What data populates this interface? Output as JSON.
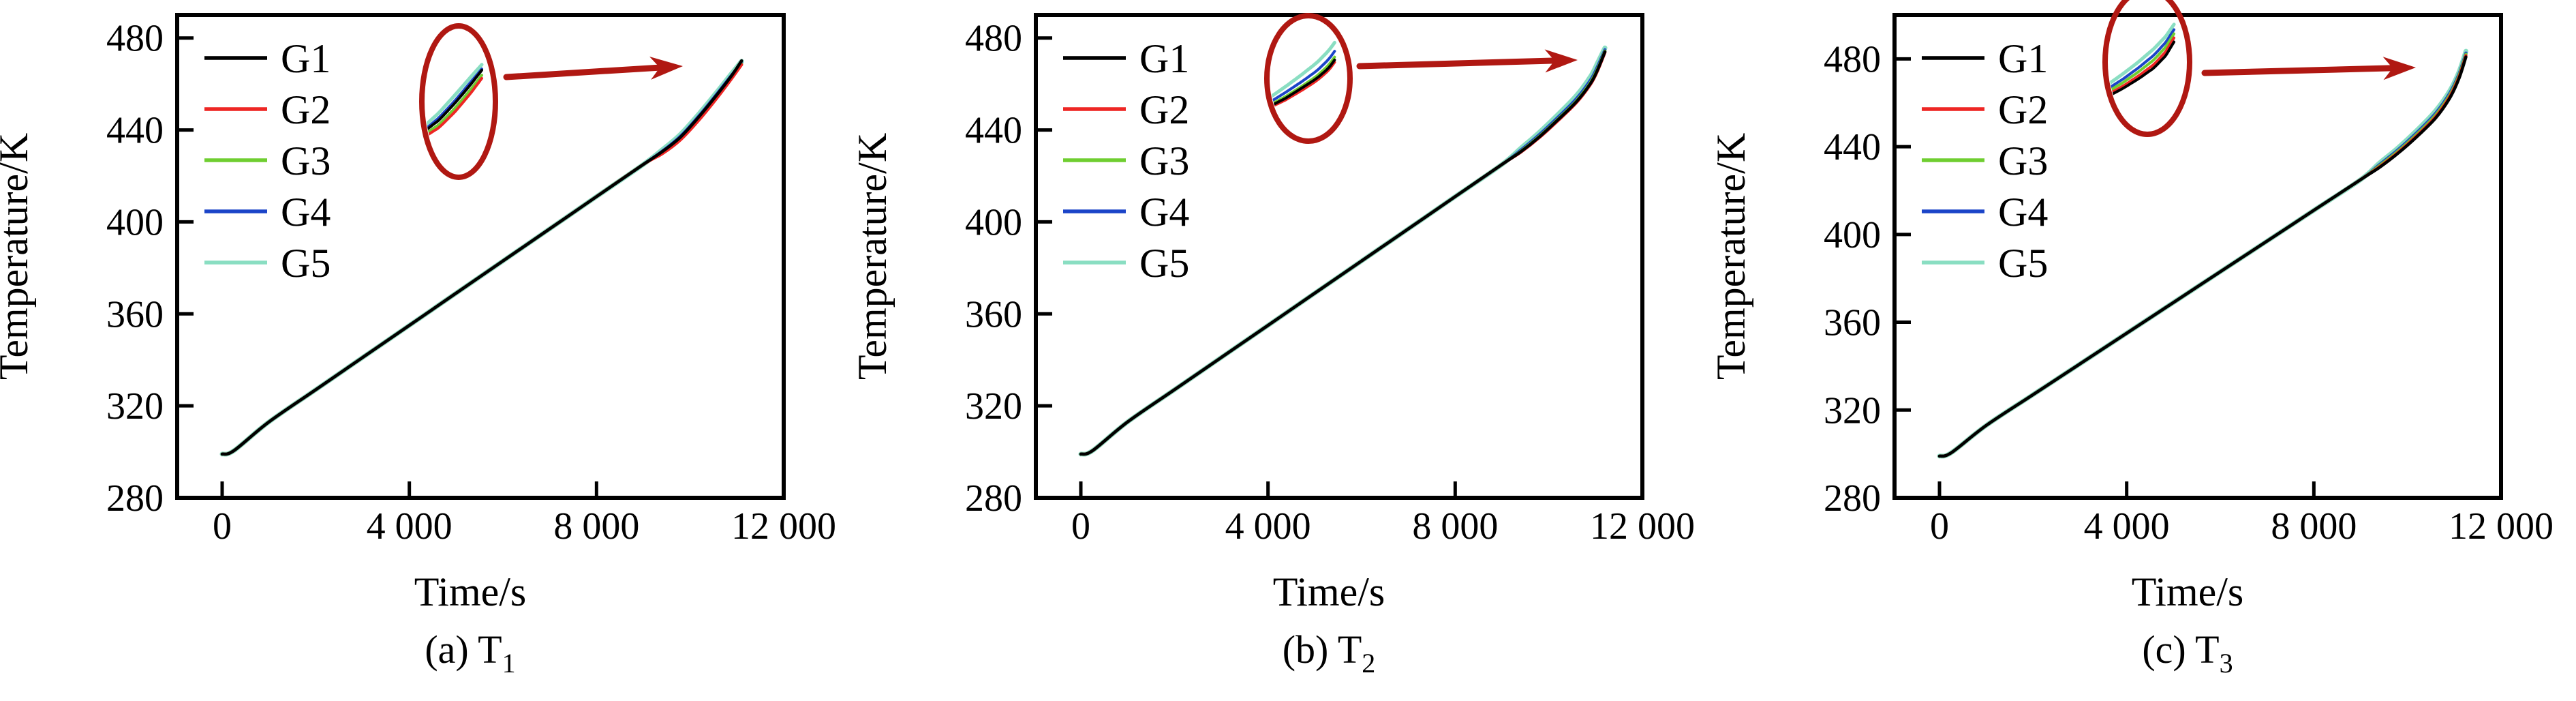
{
  "figure": {
    "background": "#ffffff",
    "axis_color": "#000000",
    "annotation_color": "#B01812",
    "annotation_shape": "magnifier-ellipse-with-arrow"
  },
  "chart_data": [
    {
      "type": "line",
      "caption": "(a) T",
      "caption_sub": "1",
      "xlabel": "Time/s",
      "ylabel": "Temperature/K",
      "xlim": [
        -950,
        12000
      ],
      "ylim": [
        280,
        490
      ],
      "grid": false,
      "legend_position": "upper-left",
      "xticks": [
        0,
        4000,
        8000,
        12000
      ],
      "xtick_labels": [
        "0",
        "4 000",
        "8 000",
        "12 000"
      ],
      "yticks": [
        280,
        320,
        360,
        400,
        440,
        480
      ],
      "ytick_labels": [
        "280",
        "320",
        "360",
        "400",
        "440",
        "480"
      ],
      "x": [
        0,
        250,
        1000,
        2000,
        3000,
        4000,
        5000,
        6000,
        7000,
        8000,
        9000,
        9400,
        9800,
        10200,
        10600,
        10900,
        11100
      ],
      "series": [
        {
          "name": "G1",
          "color": "#000000",
          "y": [
            299,
            300.5,
            313,
            327,
            341,
            355,
            369,
            383,
            397,
            411,
            425,
            430.5,
            437.0,
            446.0,
            456.0,
            464.0,
            470.1
          ]
        },
        {
          "name": "G2",
          "color": "#EE2624",
          "y": [
            299,
            300.5,
            313,
            327,
            341,
            355,
            369,
            383,
            397,
            411,
            425,
            429.6,
            435.8,
            444.6,
            454.6,
            462.7,
            468.4
          ]
        },
        {
          "name": "G3",
          "color": "#6FCE30",
          "y": [
            299,
            300.5,
            313,
            327,
            341,
            355,
            369,
            383,
            397,
            411,
            425,
            430.0,
            436.3,
            445.2,
            455.2,
            463.2,
            468.8
          ]
        },
        {
          "name": "G4",
          "color": "#1B44C8",
          "y": [
            299,
            300.5,
            313,
            327,
            341,
            355,
            369,
            383,
            397,
            411,
            425,
            430.7,
            437.4,
            446.4,
            456.4,
            464.2,
            469.2
          ]
        },
        {
          "name": "G5",
          "color": "#8ADEC2",
          "y": [
            299,
            300.5,
            313,
            327,
            341,
            355,
            369,
            383,
            397,
            411,
            425,
            431.3,
            438.2,
            447.3,
            457.2,
            464.9,
            469.9
          ]
        }
      ]
    },
    {
      "type": "line",
      "caption": "(b) T",
      "caption_sub": "2",
      "xlabel": "Time/s",
      "ylabel": "Temperature/K",
      "xlim": [
        -950,
        12000
      ],
      "ylim": [
        280,
        490
      ],
      "grid": false,
      "legend_position": "upper-left",
      "xticks": [
        0,
        4000,
        8000,
        12000
      ],
      "xtick_labels": [
        "0",
        "4 000",
        "8 000",
        "12 000"
      ],
      "yticks": [
        280,
        320,
        360,
        400,
        440,
        480
      ],
      "ytick_labels": [
        "280",
        "320",
        "360",
        "400",
        "440",
        "480"
      ],
      "x": [
        0,
        250,
        1000,
        2000,
        3000,
        4000,
        5000,
        6000,
        7000,
        8000,
        9000,
        9400,
        9800,
        10200,
        10600,
        10900,
        11050,
        11200
      ],
      "series": [
        {
          "name": "G1",
          "color": "#000000",
          "y": [
            299,
            300.5,
            313,
            327,
            341,
            355,
            369,
            383,
            397,
            411,
            425,
            430.5,
            437.0,
            444.5,
            452.5,
            460.5,
            466.5,
            474.0
          ]
        },
        {
          "name": "G2",
          "color": "#EE2624",
          "y": [
            299,
            300.5,
            313,
            327,
            341,
            355,
            369,
            383,
            397,
            411,
            425,
            430.3,
            436.7,
            444.1,
            452.1,
            460.1,
            466.1,
            473.7
          ]
        },
        {
          "name": "G3",
          "color": "#6FCE30",
          "y": [
            299,
            300.5,
            313,
            327,
            341,
            355,
            369,
            383,
            397,
            411,
            425,
            430.7,
            437.3,
            444.8,
            452.9,
            461.0,
            467.0,
            474.3
          ]
        },
        {
          "name": "G4",
          "color": "#1B44C8",
          "y": [
            299,
            300.5,
            313,
            327,
            341,
            355,
            369,
            383,
            397,
            411,
            425,
            431.2,
            438.0,
            445.6,
            453.8,
            462.0,
            468.0,
            474.9
          ]
        },
        {
          "name": "G5",
          "color": "#8ADEC2",
          "y": [
            299,
            300.5,
            313,
            327,
            341,
            355,
            369,
            383,
            397,
            411,
            425,
            432.0,
            439.0,
            446.8,
            455.2,
            463.5,
            469.5,
            475.7
          ]
        }
      ]
    },
    {
      "type": "line",
      "caption": "(c) T",
      "caption_sub": "3",
      "xlabel": "Time/s",
      "ylabel": "Temperature/K",
      "xlim": [
        -950,
        12000
      ],
      "ylim": [
        280,
        500
      ],
      "grid": false,
      "legend_position": "upper-left",
      "xticks": [
        0,
        4000,
        8000,
        12000
      ],
      "xtick_labels": [
        "0",
        "4 000",
        "8 000",
        "12 000"
      ],
      "yticks": [
        280,
        320,
        360,
        400,
        440,
        480
      ],
      "ytick_labels": [
        "280",
        "320",
        "360",
        "400",
        "440",
        "480"
      ],
      "x": [
        0,
        250,
        1000,
        2000,
        3000,
        4000,
        5000,
        6000,
        7000,
        8000,
        9000,
        9400,
        9800,
        10200,
        10600,
        10900,
        11100,
        11250
      ],
      "series": [
        {
          "name": "G1",
          "color": "#000000",
          "y": [
            299,
            300.5,
            313,
            327,
            341,
            355,
            369,
            383,
            397,
            411,
            425,
            430.5,
            437.0,
            444.5,
            453.0,
            462.0,
            471.0,
            480.9
          ]
        },
        {
          "name": "G2",
          "color": "#EE2624",
          "y": [
            299,
            300.5,
            313,
            327,
            341,
            355,
            369,
            383,
            397,
            411,
            425,
            430.8,
            437.4,
            445.0,
            453.6,
            462.7,
            471.7,
            481.5
          ]
        },
        {
          "name": "G3",
          "color": "#6FCE30",
          "y": [
            299,
            300.5,
            313,
            327,
            341,
            355,
            369,
            383,
            397,
            411,
            425,
            431.3,
            438.0,
            445.7,
            454.4,
            463.5,
            472.4,
            482.1
          ]
        },
        {
          "name": "G4",
          "color": "#1B44C8",
          "y": [
            299,
            300.5,
            313,
            327,
            341,
            355,
            369,
            383,
            397,
            411,
            425,
            431.8,
            438.6,
            446.4,
            455.2,
            464.3,
            473.1,
            482.7
          ]
        },
        {
          "name": "G5",
          "color": "#8ADEC2",
          "y": [
            299,
            300.5,
            313,
            327,
            341,
            355,
            369,
            383,
            397,
            411,
            425,
            432.5,
            439.5,
            447.4,
            456.3,
            465.3,
            474.0,
            483.5
          ]
        }
      ]
    }
  ]
}
